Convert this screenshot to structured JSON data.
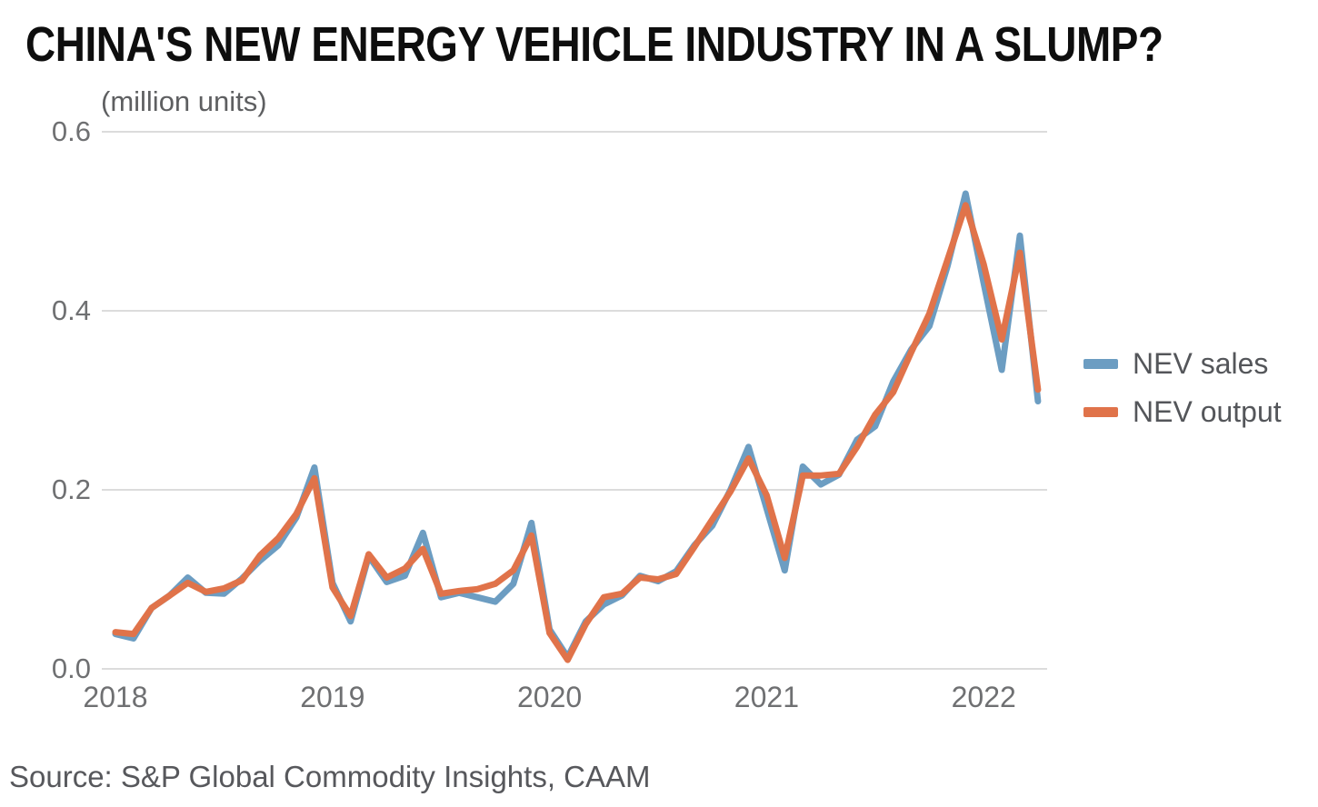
{
  "chart_data": {
    "type": "line",
    "title": "CHINA'S NEW ENERGY VEHICLE INDUSTRY IN A SLUMP?",
    "ylabel": "(million units)",
    "xlabel": "",
    "ylim": [
      0,
      0.6
    ],
    "yticks": [
      0.0,
      0.2,
      0.4,
      0.6
    ],
    "ytick_labels": [
      "0.0",
      "0.2",
      "0.4",
      "0.6"
    ],
    "xtick_years": [
      2018,
      2019,
      2020,
      2021,
      2022
    ],
    "xtick_labels": [
      "2018",
      "2019",
      "2020",
      "2021",
      "2022"
    ],
    "grid": "horizontal-only",
    "legend_position": "right-middle",
    "x": [
      "2018-01",
      "2018-02",
      "2018-03",
      "2018-04",
      "2018-05",
      "2018-06",
      "2018-07",
      "2018-08",
      "2018-09",
      "2018-10",
      "2018-11",
      "2018-12",
      "2019-01",
      "2019-02",
      "2019-03",
      "2019-04",
      "2019-05",
      "2019-06",
      "2019-07",
      "2019-08",
      "2019-09",
      "2019-10",
      "2019-11",
      "2019-12",
      "2020-01",
      "2020-02",
      "2020-03",
      "2020-04",
      "2020-05",
      "2020-06",
      "2020-07",
      "2020-08",
      "2020-09",
      "2020-10",
      "2020-11",
      "2020-12",
      "2021-01",
      "2021-02",
      "2021-03",
      "2021-04",
      "2021-05",
      "2021-06",
      "2021-07",
      "2021-08",
      "2021-09",
      "2021-10",
      "2021-11",
      "2021-12",
      "2022-01",
      "2022-02",
      "2022-03",
      "2022-04"
    ],
    "series": [
      {
        "name": "NEV sales",
        "color": "#6C9DC2",
        "values": [
          0.039,
          0.034,
          0.068,
          0.082,
          0.102,
          0.085,
          0.084,
          0.101,
          0.121,
          0.138,
          0.169,
          0.225,
          0.096,
          0.053,
          0.126,
          0.097,
          0.104,
          0.152,
          0.08,
          0.085,
          0.08,
          0.075,
          0.095,
          0.163,
          0.044,
          0.013,
          0.053,
          0.072,
          0.082,
          0.104,
          0.098,
          0.109,
          0.138,
          0.16,
          0.2,
          0.248,
          0.179,
          0.11,
          0.226,
          0.206,
          0.217,
          0.256,
          0.271,
          0.321,
          0.357,
          0.383,
          0.45,
          0.531,
          0.431,
          0.334,
          0.484,
          0.299
        ]
      },
      {
        "name": "NEV output",
        "color": "#E0734A",
        "values": [
          0.041,
          0.039,
          0.068,
          0.082,
          0.096,
          0.086,
          0.09,
          0.099,
          0.127,
          0.146,
          0.173,
          0.213,
          0.091,
          0.059,
          0.128,
          0.102,
          0.112,
          0.134,
          0.084,
          0.087,
          0.089,
          0.095,
          0.11,
          0.149,
          0.04,
          0.01,
          0.05,
          0.08,
          0.084,
          0.102,
          0.1,
          0.106,
          0.136,
          0.167,
          0.198,
          0.235,
          0.194,
          0.124,
          0.216,
          0.216,
          0.218,
          0.248,
          0.284,
          0.309,
          0.354,
          0.397,
          0.457,
          0.518,
          0.452,
          0.368,
          0.465,
          0.312
        ]
      }
    ]
  },
  "source": "Source: S&P Global Commodity Insights, CAAM",
  "colors": {
    "grid": "#DCDCDC",
    "axis_text": "#6F7072",
    "title_text": "#0E0E0E",
    "caption_text": "#57585C"
  }
}
